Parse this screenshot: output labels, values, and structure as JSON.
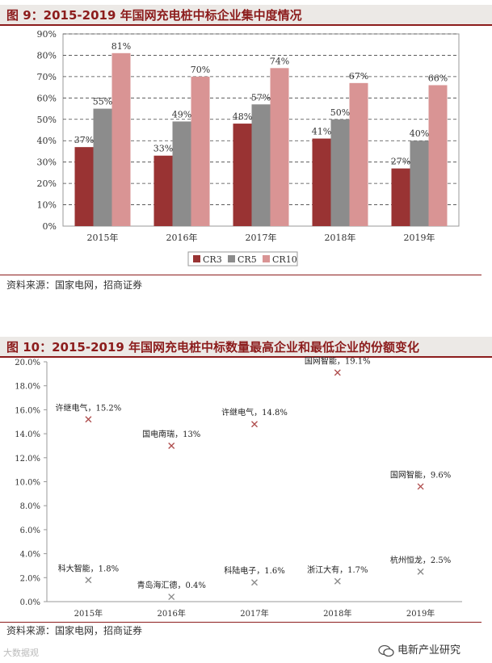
{
  "figure1": {
    "title": "图 9：2015-2019 年国网充电桩中标企业集中度情况",
    "source": "资料来源：国家电网，招商证券"
  },
  "figure2": {
    "title": "图 10：2015-2019 年国网充电桩中标数量最高企业和最低企业的份额变化",
    "source": "资料来源：国家电网，招商证券"
  },
  "watermark": {
    "left": "大数据观",
    "right": "电新产业研究"
  },
  "chart_data": [
    {
      "type": "bar",
      "categories": [
        "2015年",
        "2016年",
        "2017年",
        "2018年",
        "2019年"
      ],
      "series": [
        {
          "name": "CR3",
          "values": [
            37,
            33,
            48,
            41,
            27
          ],
          "color": "#993333"
        },
        {
          "name": "CR5",
          "values": [
            55,
            49,
            57,
            50,
            40
          ],
          "color": "#8c8c8c"
        },
        {
          "name": "CR10",
          "values": [
            81,
            70,
            74,
            67,
            66
          ],
          "color": "#d99494"
        }
      ],
      "ylim": [
        0,
        90
      ],
      "yticks": [
        "0%",
        "10%",
        "20%",
        "30%",
        "40%",
        "50%",
        "60%",
        "70%",
        "80%",
        "90%"
      ],
      "grid": true,
      "legend": "bottom"
    },
    {
      "type": "scatter",
      "categories": [
        "2015年",
        "2016年",
        "2017年",
        "2018年",
        "2019年"
      ],
      "highest": [
        {
          "label": "许继电气，15.2%",
          "value": 15.2
        },
        {
          "label": "国电南瑞，13%",
          "value": 13.0
        },
        {
          "label": "许继电气，14.8%",
          "value": 14.8
        },
        {
          "label": "国网智能，19.1%",
          "value": 19.1
        },
        {
          "label": "国网智能，9.6%",
          "value": 9.6
        }
      ],
      "lowest": [
        {
          "label": "科大智能，1.8%",
          "value": 1.8
        },
        {
          "label": "青岛海汇德，0.4%",
          "value": 0.4
        },
        {
          "label": "科陆电子，1.6%",
          "value": 1.6
        },
        {
          "label": "浙江大有，1.7%",
          "value": 1.7
        },
        {
          "label": "杭州恒龙，2.5%",
          "value": 2.5
        }
      ],
      "ylim": [
        0,
        20
      ],
      "yticks": [
        "0.0%",
        "2.0%",
        "4.0%",
        "6.0%",
        "8.0%",
        "10.0%",
        "12.0%",
        "14.0%",
        "16.0%",
        "18.0%",
        "20.0%"
      ],
      "marker_colors": {
        "highest": "#b05050",
        "lowest": "#8c8c8c"
      }
    }
  ]
}
